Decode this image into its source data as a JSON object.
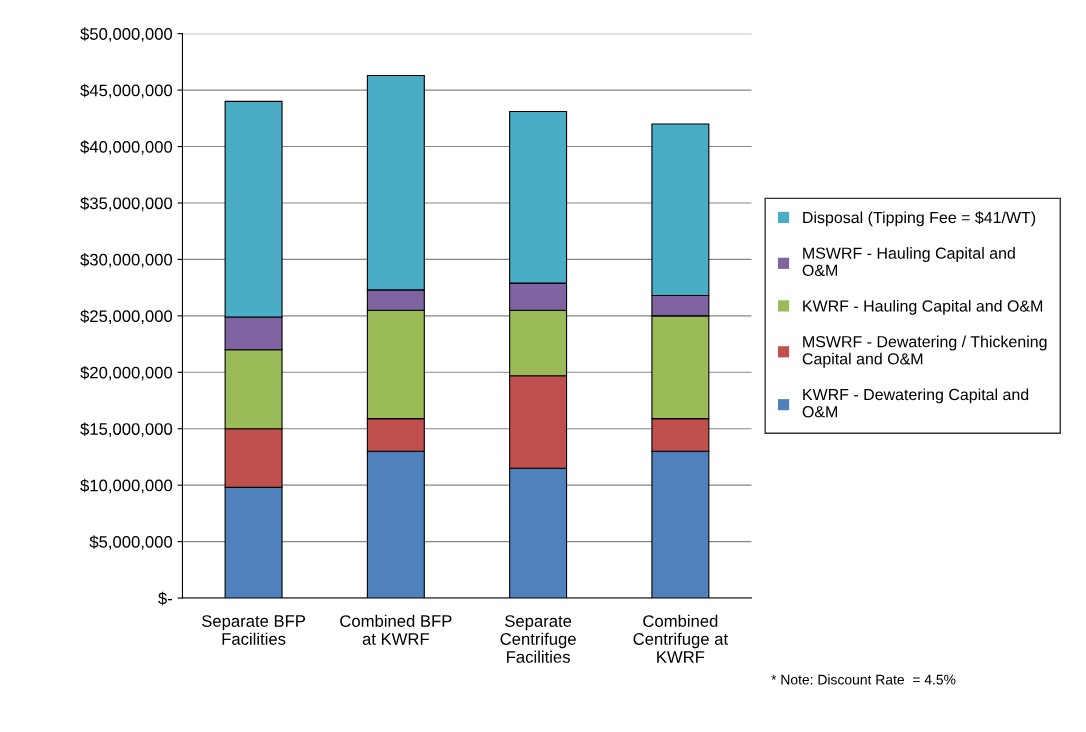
{
  "chart_data": {
    "type": "bar",
    "stacked": true,
    "categories": [
      "Separate BFP\nFacilities",
      "Combined BFP\nat KWRF",
      "Separate\nCentrifuge\nFacilities",
      "Combined\nCentrifuge at\nKWRF"
    ],
    "series": [
      {
        "name": "KWRF - Dewatering Capital and\nO&M",
        "color": "#4f81bd",
        "values": [
          9800000.0,
          13000000.0,
          11500000.0,
          13000000.0
        ]
      },
      {
        "name": "MSWRF - Dewatering / Thickening\nCapital and O&M",
        "color": "#c0504d",
        "values": [
          5200000.0,
          2900000.0,
          8200000.0,
          2900000.0
        ]
      },
      {
        "name": "KWRF - Hauling Capital and O&M",
        "color": "#9bbb59",
        "values": [
          7000000.0,
          9600000.0,
          5800000.0,
          9100000.0
        ]
      },
      {
        "name": "MSWRF - Hauling Capital and\nO&M",
        "color": "#8064a2",
        "values": [
          2900000.0,
          1800000.0,
          2400000.0,
          1800000.0
        ]
      },
      {
        "name": "Disposal (Tipping Fee = $41/WT)",
        "color": "#4bacc6",
        "values": [
          19100000.0,
          19000000.0,
          15200000.0,
          15200000.0
        ]
      }
    ],
    "ylim": [
      0,
      50000000
    ],
    "yticks": [
      {
        "value": 0,
        "label": "$-"
      },
      {
        "value": 5000000,
        "label": "$5,000,000"
      },
      {
        "value": 10000000,
        "label": "$10,000,000"
      },
      {
        "value": 15000000,
        "label": "$15,000,000"
      },
      {
        "value": 20000000,
        "label": "$20,000,000"
      },
      {
        "value": 25000000,
        "label": "$25,000,000"
      },
      {
        "value": 30000000,
        "label": "$30,000,000"
      },
      {
        "value": 35000000,
        "label": "$35,000,000"
      },
      {
        "value": 40000000,
        "label": "$40,000,000"
      },
      {
        "value": 45000000,
        "label": "$45,000,000"
      },
      {
        "value": 50000000,
        "label": "$50,000,000"
      }
    ],
    "grid": "y",
    "legend": "right",
    "annotations": [
      "* Note: Discount Rate  = 4.5%"
    ]
  }
}
